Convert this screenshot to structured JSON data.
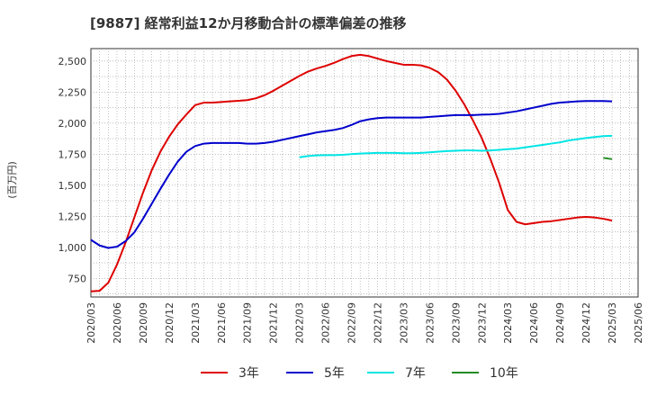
{
  "chart_data": {
    "type": "line",
    "title": "[9887]  経常利益12か月移動合計の標準偏差の推移",
    "ylabel": "(百万円)",
    "xlabel": "",
    "ylim": [
      600,
      2600
    ],
    "yticks": [
      750,
      1000,
      1250,
      1500,
      1750,
      2000,
      2250,
      2500
    ],
    "ytick_labels": [
      "750",
      "1,000",
      "1,250",
      "1,500",
      "1,750",
      "2,000",
      "2,250",
      "2,500"
    ],
    "x_tick_labels": [
      "2020/03",
      "2020/06",
      "2020/09",
      "2020/12",
      "2021/03",
      "2021/06",
      "2021/09",
      "2021/12",
      "2022/03",
      "2022/06",
      "2022/09",
      "2022/12",
      "2023/03",
      "2023/06",
      "2023/09",
      "2023/12",
      "2024/03",
      "2024/06",
      "2024/09",
      "2024/12",
      "2025/03",
      "2025/06"
    ],
    "grid": true,
    "legend_position": "bottom",
    "series": [
      {
        "name": "3年",
        "color": "#dd0000",
        "start_month": 0,
        "values": [
          645,
          650,
          715,
          860,
          1040,
          1240,
          1440,
          1620,
          1770,
          1890,
          1990,
          2070,
          2145,
          2165,
          2165,
          2170,
          2175,
          2180,
          2185,
          2200,
          2225,
          2260,
          2300,
          2340,
          2380,
          2415,
          2440,
          2460,
          2485,
          2515,
          2540,
          2550,
          2540,
          2520,
          2500,
          2485,
          2470,
          2470,
          2465,
          2445,
          2410,
          2350,
          2260,
          2150,
          2020,
          1880,
          1710,
          1520,
          1300,
          1205,
          1185,
          1195,
          1205,
          1210,
          1220,
          1230,
          1240,
          1245,
          1240,
          1230,
          1215
        ]
      },
      {
        "name": "5年",
        "color": "#0000cc",
        "start_month": 0,
        "values": [
          1060,
          1015,
          995,
          1005,
          1050,
          1120,
          1230,
          1350,
          1470,
          1585,
          1690,
          1770,
          1815,
          1835,
          1840,
          1840,
          1840,
          1840,
          1835,
          1835,
          1840,
          1850,
          1865,
          1880,
          1895,
          1910,
          1925,
          1935,
          1945,
          1960,
          1985,
          2015,
          2030,
          2040,
          2045,
          2045,
          2045,
          2045,
          2045,
          2050,
          2055,
          2060,
          2065,
          2065,
          2065,
          2068,
          2070,
          2075,
          2085,
          2095,
          2110,
          2125,
          2140,
          2155,
          2165,
          2170,
          2175,
          2178,
          2178,
          2178,
          2175
        ]
      },
      {
        "name": "7年",
        "color": "#00e5e5",
        "start_month": 24,
        "values": [
          1725,
          1735,
          1740,
          1742,
          1742,
          1745,
          1750,
          1755,
          1758,
          1760,
          1760,
          1760,
          1758,
          1758,
          1760,
          1765,
          1770,
          1775,
          1778,
          1780,
          1780,
          1778,
          1780,
          1785,
          1790,
          1795,
          1805,
          1815,
          1825,
          1835,
          1845,
          1860,
          1870,
          1880,
          1888,
          1895,
          1898
        ]
      },
      {
        "name": "10年",
        "color": "#228b22",
        "start_month": 59,
        "values": [
          1720,
          1710
        ]
      }
    ]
  }
}
